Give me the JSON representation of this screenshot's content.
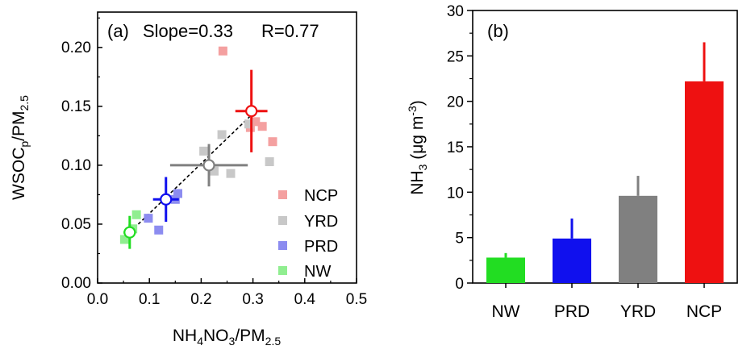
{
  "chart_data": [
    {
      "type": "scatter",
      "panel_label": "(a)",
      "annotation": {
        "slope": "Slope=0.33",
        "r": "R=0.77"
      },
      "xlabel": {
        "main": "NH",
        "s1": "4",
        "mid": "NO",
        "s2": "3",
        "tail": "/PM",
        "s3": "2.5"
      },
      "ylabel": {
        "main": "WSOC",
        "s1": "p",
        "tail": "/PM",
        "s2": "2.5"
      },
      "xlim": [
        0,
        0.5
      ],
      "ylim": [
        0,
        0.23
      ],
      "xticks": [
        "0.0",
        "0.1",
        "0.2",
        "0.3",
        "0.4",
        "0.5"
      ],
      "yticks": [
        "0.00",
        "0.05",
        "0.10",
        "0.15",
        "0.20"
      ],
      "legend_position": "bottom-right",
      "series": [
        {
          "name": "NCP",
          "color": "#f4a0a0",
          "mean_color": "#ee1111",
          "points": [
            [
              0.242,
              0.197
            ],
            [
              0.295,
              0.132
            ],
            [
              0.305,
              0.137
            ],
            [
              0.318,
              0.133
            ],
            [
              0.338,
              0.12
            ]
          ],
          "mean": {
            "x": 0.297,
            "y": 0.146,
            "xerr": 0.031,
            "yerr": 0.035
          }
        },
        {
          "name": "YRD",
          "color": "#c8c8c8",
          "mean_color": "#808080",
          "points": [
            [
              0.205,
              0.112
            ],
            [
              0.24,
              0.126
            ],
            [
              0.257,
              0.093
            ],
            [
              0.292,
              0.135
            ],
            [
              0.332,
              0.103
            ],
            [
              0.225,
              0.095
            ]
          ],
          "mean": {
            "x": 0.215,
            "y": 0.1,
            "xerr": 0.075,
            "yerr": 0.018
          }
        },
        {
          "name": "PRD",
          "color": "#8c8cf0",
          "mean_color": "#1010ee",
          "points": [
            [
              0.098,
              0.055
            ],
            [
              0.118,
              0.045
            ],
            [
              0.155,
              0.076
            ],
            [
              0.15,
              0.071
            ]
          ],
          "mean": {
            "x": 0.132,
            "y": 0.071,
            "xerr": 0.025,
            "yerr": 0.019
          }
        },
        {
          "name": "NW",
          "color": "#90ee90",
          "mean_color": "#22dd22",
          "points": [
            [
              0.052,
              0.037
            ],
            [
              0.075,
              0.058
            ],
            [
              0.068,
              0.046
            ]
          ],
          "mean": {
            "x": 0.062,
            "y": 0.043,
            "xerr": 0.012,
            "yerr": 0.014
          }
        }
      ],
      "fit_line": {
        "x": [
          0.055,
          0.305
        ],
        "y": [
          0.04,
          0.146
        ]
      }
    },
    {
      "type": "bar",
      "panel_label": "(b)",
      "categories": [
        "NW",
        "PRD",
        "YRD",
        "NCP"
      ],
      "values": [
        2.8,
        4.9,
        9.6,
        22.2
      ],
      "errors": [
        0.5,
        2.2,
        2.2,
        4.3
      ],
      "colors": [
        "#22dd22",
        "#1010ee",
        "#808080",
        "#ee1111"
      ],
      "ylabel": {
        "main": "NH",
        "s1": "3",
        "mid": " (μg m",
        "s2": "-3",
        "tail": ")"
      },
      "ylim": [
        0,
        30
      ],
      "yticks": [
        "0",
        "5",
        "10",
        "15",
        "20",
        "25",
        "30"
      ]
    }
  ]
}
